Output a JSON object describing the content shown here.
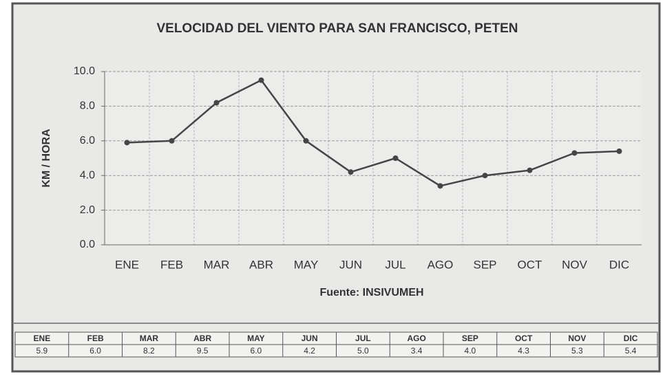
{
  "chart_data": {
    "type": "line",
    "title": "VELOCIDAD DEL VIENTO PARA SAN FRANCISCO, PETEN",
    "ylabel": "KM / HORA",
    "source": "Fuente: INSIVUMEH",
    "categories": [
      "ENE",
      "FEB",
      "MAR",
      "ABR",
      "MAY",
      "JUN",
      "JUL",
      "AGO",
      "SEP",
      "OCT",
      "NOV",
      "DIC"
    ],
    "values": [
      5.9,
      6.0,
      8.2,
      9.5,
      6.0,
      4.2,
      5.0,
      3.4,
      4.0,
      4.3,
      5.3,
      5.4
    ],
    "value_labels": [
      "5.9",
      "6.0",
      "8.2",
      "9.5",
      "6.0",
      "4.2",
      "5.0",
      "3.4",
      "4.0",
      "4.3",
      "5.3",
      "5.4"
    ],
    "color": "#454545",
    "ylim": [
      0,
      10
    ],
    "yticks": [
      {
        "value": 0,
        "label": "0.0"
      },
      {
        "value": 2,
        "label": "2.0"
      },
      {
        "value": 4,
        "label": "4.0"
      },
      {
        "value": 6,
        "label": "6.0"
      },
      {
        "value": 8,
        "label": "8.0"
      },
      {
        "value": 10,
        "label": "10.0"
      }
    ],
    "grid": true
  }
}
